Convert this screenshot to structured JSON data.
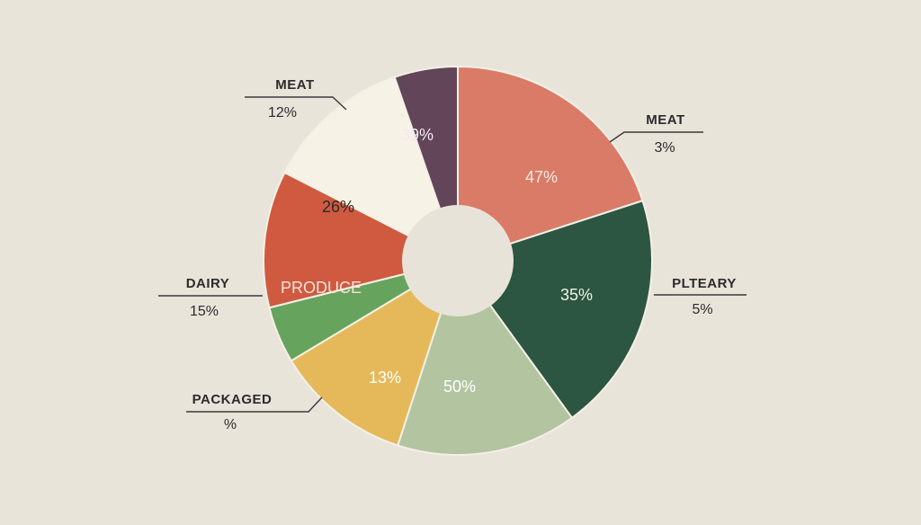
{
  "chart_data": {
    "type": "pie",
    "title": "",
    "donut": true,
    "slices": [
      {
        "label": "47%",
        "color": "#d97b67",
        "text_color": "#fbe9e2"
      },
      {
        "label": "35%",
        "color": "#2c5641",
        "text_color": "#f1f1ea"
      },
      {
        "label": "50%",
        "color": "#b2c4a0",
        "text_color": "#ffffff"
      },
      {
        "label": "13%",
        "color": "#e5b95a",
        "text_color": "#ffffff"
      },
      {
        "label": "",
        "color": "#66a35d",
        "text_color": "#ffffff"
      },
      {
        "label": "PRODUCE",
        "color": "#cf5a40",
        "text_color": "#fbe3db"
      },
      {
        "label": "26%",
        "color": "#f6f2e6",
        "text_color": "#2b2b2b"
      },
      {
        "label": "39%",
        "color": "#624558",
        "text_color": "#f3eaf0"
      }
    ],
    "callouts": [
      {
        "name": "MEAT",
        "value": "12%"
      },
      {
        "name": "MEAT",
        "value": "3%"
      },
      {
        "name": "PLTEARY",
        "value": "5%"
      },
      {
        "name": "DAIRY",
        "value": "15%"
      },
      {
        "name": "PACKAGED",
        "value": "%"
      }
    ]
  }
}
